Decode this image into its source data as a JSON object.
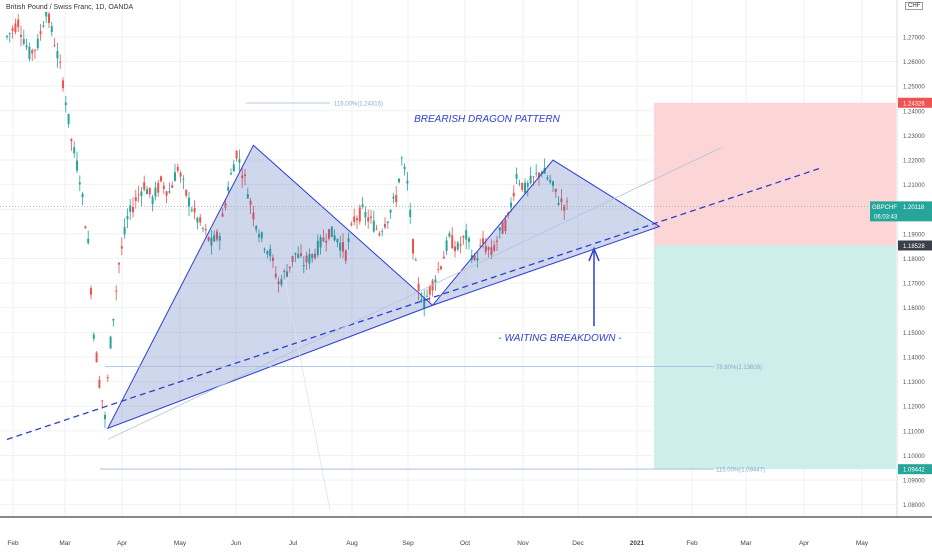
{
  "header": {
    "symbol_title": "British Pound / Swiss Franc, 1D, OANDA",
    "currency": "CHF"
  },
  "colors": {
    "up_candle": "#26a69a",
    "down_candle": "#ef5350",
    "pattern_fill": "#3f5fb5",
    "pattern_line": "#2d3fd0",
    "stop_zone": "#fcd6d6",
    "target_zone": "#cdeeea",
    "price_tag_red": "#ef5350",
    "price_tag_green": "#26a69a",
    "price_tag_dark": "#3a3f4a"
  },
  "chart_data": {
    "type": "candlestick",
    "symbol": "GBPCHF",
    "timeframe": "1D",
    "ylim": [
      1.075,
      1.285
    ],
    "yticks": [
      1.08,
      1.09,
      1.1,
      1.11,
      1.12,
      1.13,
      1.14,
      1.15,
      1.16,
      1.17,
      1.18,
      1.19,
      1.2,
      1.21,
      1.22,
      1.23,
      1.24,
      1.25,
      1.26,
      1.27
    ],
    "ytick_labels": [
      "1.08000",
      "1.09000",
      "1.10000",
      "1.11000",
      "1.12000",
      "1.13000",
      "1.14000",
      "1.15000",
      "1.16000",
      "1.17000",
      "1.18000",
      "1.19000",
      "1.20000",
      "1.21000",
      "1.22000",
      "1.23000",
      "1.24000",
      "1.25000",
      "1.26000",
      "1.27000"
    ],
    "xticks": [
      "Feb",
      "Mar",
      "Apr",
      "May",
      "Jun",
      "Jul",
      "Aug",
      "Sep",
      "Oct",
      "Nov",
      "Dec",
      "2021",
      "Feb",
      "Mar",
      "Apr",
      "May"
    ],
    "price_path": [
      [
        0,
        1.27
      ],
      [
        4,
        1.276
      ],
      [
        8,
        1.263
      ],
      [
        11,
        1.267
      ],
      [
        14,
        1.281
      ],
      [
        17,
        1.268
      ],
      [
        20,
        1.252
      ],
      [
        23,
        1.228
      ],
      [
        26,
        1.213
      ],
      [
        29,
        1.186
      ],
      [
        31,
        1.15
      ],
      [
        33,
        1.13
      ],
      [
        35,
        1.115
      ],
      [
        37,
        1.146
      ],
      [
        40,
        1.178
      ],
      [
        43,
        1.196
      ],
      [
        46,
        1.204
      ],
      [
        49,
        1.21
      ],
      [
        52,
        1.204
      ],
      [
        55,
        1.211
      ],
      [
        58,
        1.207
      ],
      [
        61,
        1.217
      ],
      [
        64,
        1.206
      ],
      [
        67,
        1.198
      ],
      [
        70,
        1.192
      ],
      [
        73,
        1.186
      ],
      [
        76,
        1.19
      ],
      [
        79,
        1.209
      ],
      [
        82,
        1.223
      ],
      [
        85,
        1.212
      ],
      [
        88,
        1.198
      ],
      [
        91,
        1.188
      ],
      [
        94,
        1.182
      ],
      [
        97,
        1.17
      ],
      [
        100,
        1.175
      ],
      [
        103,
        1.182
      ],
      [
        106,
        1.178
      ],
      [
        109,
        1.181
      ],
      [
        112,
        1.186
      ],
      [
        115,
        1.191
      ],
      [
        118,
        1.188
      ],
      [
        121,
        1.182
      ],
      [
        124,
        1.196
      ],
      [
        127,
        1.199
      ],
      [
        130,
        1.195
      ],
      [
        133,
        1.191
      ],
      [
        136,
        1.197
      ],
      [
        139,
        1.205
      ],
      [
        141,
        1.22
      ],
      [
        143,
        1.21
      ],
      [
        145,
        1.185
      ],
      [
        147,
        1.168
      ],
      [
        149,
        1.162
      ],
      [
        152,
        1.17
      ],
      [
        155,
        1.178
      ],
      [
        158,
        1.188
      ],
      [
        161,
        1.184
      ],
      [
        164,
        1.189
      ],
      [
        167,
        1.179
      ],
      [
        170,
        1.186
      ],
      [
        173,
        1.182
      ],
      [
        176,
        1.19
      ],
      [
        179,
        1.196
      ],
      [
        182,
        1.214
      ],
      [
        185,
        1.208
      ],
      [
        188,
        1.212
      ],
      [
        191,
        1.216
      ],
      [
        194,
        1.211
      ],
      [
        197,
        1.204
      ],
      [
        200,
        1.201
      ]
    ],
    "dragon_pattern": {
      "left_triangle": [
        [
          36,
          1.111
        ],
        [
          88,
          1.226
        ],
        [
          152,
          1.161
        ]
      ],
      "right_triangle": [
        [
          152,
          1.161
        ],
        [
          195,
          1.22
        ],
        [
          233,
          1.193
        ]
      ],
      "trendline": [
        [
          0,
          1.1065
        ],
        [
          290,
          1.2165
        ]
      ],
      "inner_line": [
        [
          36,
          1.1065
        ],
        [
          255,
          1.225
        ]
      ]
    },
    "fib_levels": [
      {
        "label": "115.00%(1.24315)",
        "value": 1.24315
      },
      {
        "label": "78.60%(1.13609)",
        "value": 1.13609
      },
      {
        "label": "115.00%(1.09447)",
        "value": 1.09447
      }
    ],
    "position": {
      "stop": 1.24326,
      "entry": 1.18528,
      "target": 1.09442,
      "last_price": 1.20118
    },
    "annotations": {
      "pattern_title": "BREARISH DRAGON PATTERN",
      "breakdown_note": "- WAITING BREAKDOWN -"
    },
    "price_tags": {
      "stop": "1.24326",
      "entry": "1.18528",
      "target": "1.09442",
      "symbol": "GBPCHF",
      "last": "1.20118",
      "countdown": "06:03:43"
    }
  }
}
